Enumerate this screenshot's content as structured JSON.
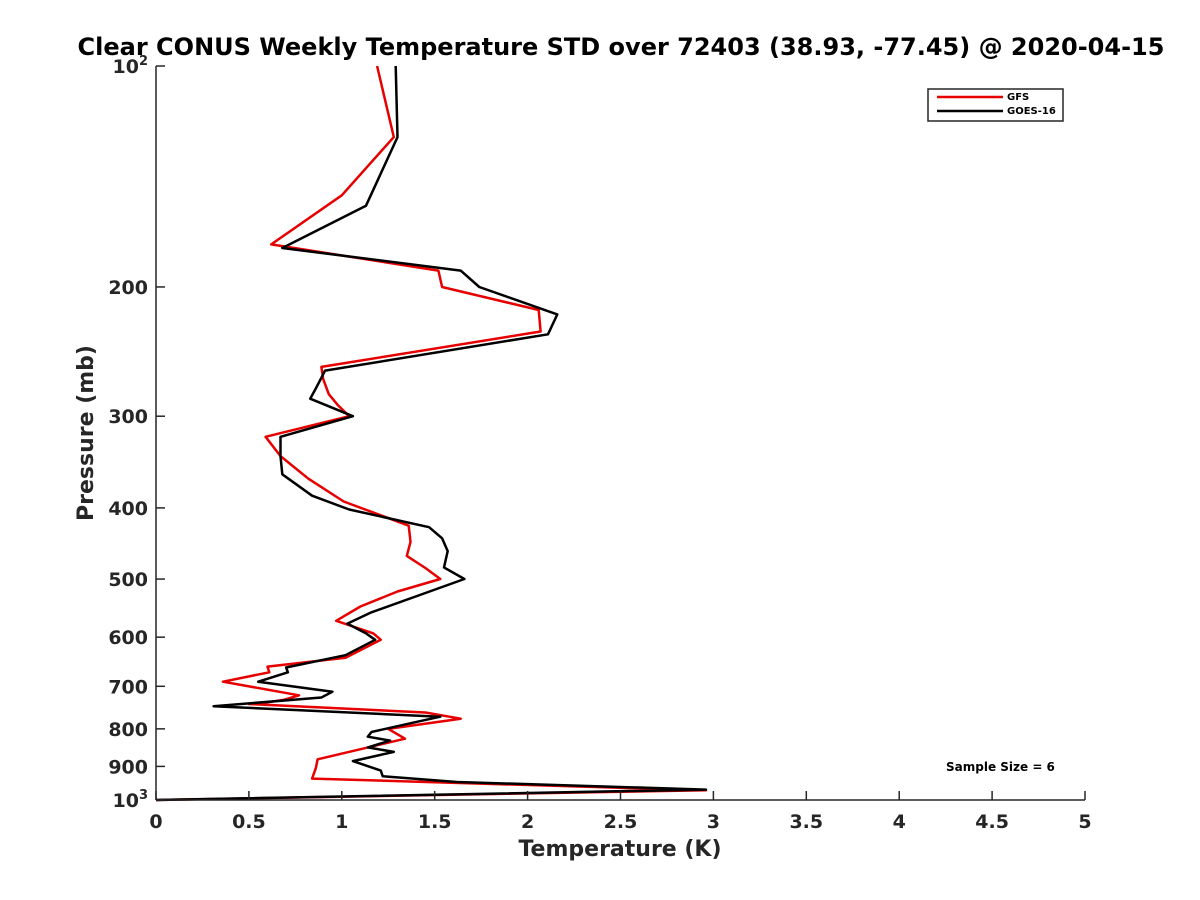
{
  "chart_data": {
    "type": "line",
    "title": "Clear CONUS Weekly Temperature STD over 72403 (38.93, -77.45) @ 2020-04-15",
    "xlabel": "Temperature (K)",
    "ylabel": "Pressure (mb)",
    "xlim": [
      0,
      5
    ],
    "ylim": [
      100,
      1000
    ],
    "y_scale": "log",
    "y_reversed": true,
    "x_ticks": [
      "0",
      "0.5",
      "1",
      "1.5",
      "2",
      "2.5",
      "3",
      "3.5",
      "4",
      "4.5",
      "5"
    ],
    "y_ticks": [
      {
        "value": 100,
        "base": "10",
        "exp": "2"
      },
      {
        "value": 200,
        "label": "200"
      },
      {
        "value": 300,
        "label": "300"
      },
      {
        "value": 400,
        "label": "400"
      },
      {
        "value": 500,
        "label": "500"
      },
      {
        "value": 600,
        "label": "600"
      },
      {
        "value": 700,
        "label": "700"
      },
      {
        "value": 800,
        "label": "800"
      },
      {
        "value": 900,
        "label": "900"
      },
      {
        "value": 1000,
        "base": "10",
        "exp": "3"
      }
    ],
    "legend_position": "top-right",
    "grid": false,
    "annotation": "Sample Size = 6",
    "series": [
      {
        "name": "GFS",
        "color": "#e60000",
        "points": [
          [
            1.19,
            100
          ],
          [
            1.28,
            125
          ],
          [
            1.0,
            150
          ],
          [
            0.62,
            175
          ],
          [
            1.52,
            190
          ],
          [
            1.54,
            200
          ],
          [
            2.06,
            215
          ],
          [
            2.07,
            230
          ],
          [
            0.89,
            257
          ],
          [
            0.9,
            267
          ],
          [
            0.93,
            280
          ],
          [
            0.98,
            290
          ],
          [
            1.04,
            300
          ],
          [
            0.59,
            320
          ],
          [
            0.67,
            340
          ],
          [
            0.82,
            365
          ],
          [
            1.01,
            392
          ],
          [
            1.36,
            423
          ],
          [
            1.37,
            445
          ],
          [
            1.35,
            465
          ],
          [
            1.45,
            483
          ],
          [
            1.53,
            500
          ],
          [
            1.3,
            520
          ],
          [
            1.1,
            545
          ],
          [
            0.97,
            570
          ],
          [
            1.17,
            593
          ],
          [
            1.21,
            605
          ],
          [
            1.02,
            640
          ],
          [
            0.6,
            658
          ],
          [
            0.61,
            670
          ],
          [
            0.36,
            690
          ],
          [
            0.77,
            720
          ],
          [
            0.69,
            730
          ],
          [
            0.59,
            737
          ],
          [
            0.5,
            740
          ],
          [
            1.45,
            760
          ],
          [
            1.64,
            775
          ],
          [
            1.25,
            800
          ],
          [
            1.34,
            825
          ],
          [
            0.87,
            880
          ],
          [
            0.86,
            905
          ],
          [
            0.84,
            935
          ],
          [
            2.96,
            970
          ],
          [
            0.0,
            1000
          ]
        ]
      },
      {
        "name": "GOES-16",
        "color": "#000000",
        "points": [
          [
            1.29,
            100
          ],
          [
            1.3,
            125
          ],
          [
            1.13,
            155
          ],
          [
            0.68,
            177
          ],
          [
            1.64,
            190
          ],
          [
            1.74,
            200
          ],
          [
            2.16,
            218
          ],
          [
            2.11,
            232
          ],
          [
            0.91,
            260
          ],
          [
            0.86,
            275
          ],
          [
            0.83,
            284
          ],
          [
            1.06,
            300
          ],
          [
            0.67,
            320
          ],
          [
            0.67,
            340
          ],
          [
            0.68,
            360
          ],
          [
            0.84,
            385
          ],
          [
            1.04,
            402
          ],
          [
            1.47,
            425
          ],
          [
            1.54,
            440
          ],
          [
            1.57,
            458
          ],
          [
            1.55,
            482
          ],
          [
            1.66,
            500
          ],
          [
            1.16,
            555
          ],
          [
            1.03,
            575
          ],
          [
            1.13,
            593
          ],
          [
            1.18,
            605
          ],
          [
            1.02,
            635
          ],
          [
            0.7,
            660
          ],
          [
            0.71,
            670
          ],
          [
            0.55,
            690
          ],
          [
            0.95,
            712
          ],
          [
            0.89,
            725
          ],
          [
            0.31,
            745
          ],
          [
            1.53,
            770
          ],
          [
            1.38,
            785
          ],
          [
            1.16,
            808
          ],
          [
            1.14,
            820
          ],
          [
            1.26,
            830
          ],
          [
            1.14,
            848
          ],
          [
            1.28,
            860
          ],
          [
            1.06,
            885
          ],
          [
            1.21,
            912
          ],
          [
            1.22,
            928
          ],
          [
            1.62,
            945
          ],
          [
            2.96,
            968
          ],
          [
            0.0,
            1000
          ]
        ]
      }
    ]
  }
}
